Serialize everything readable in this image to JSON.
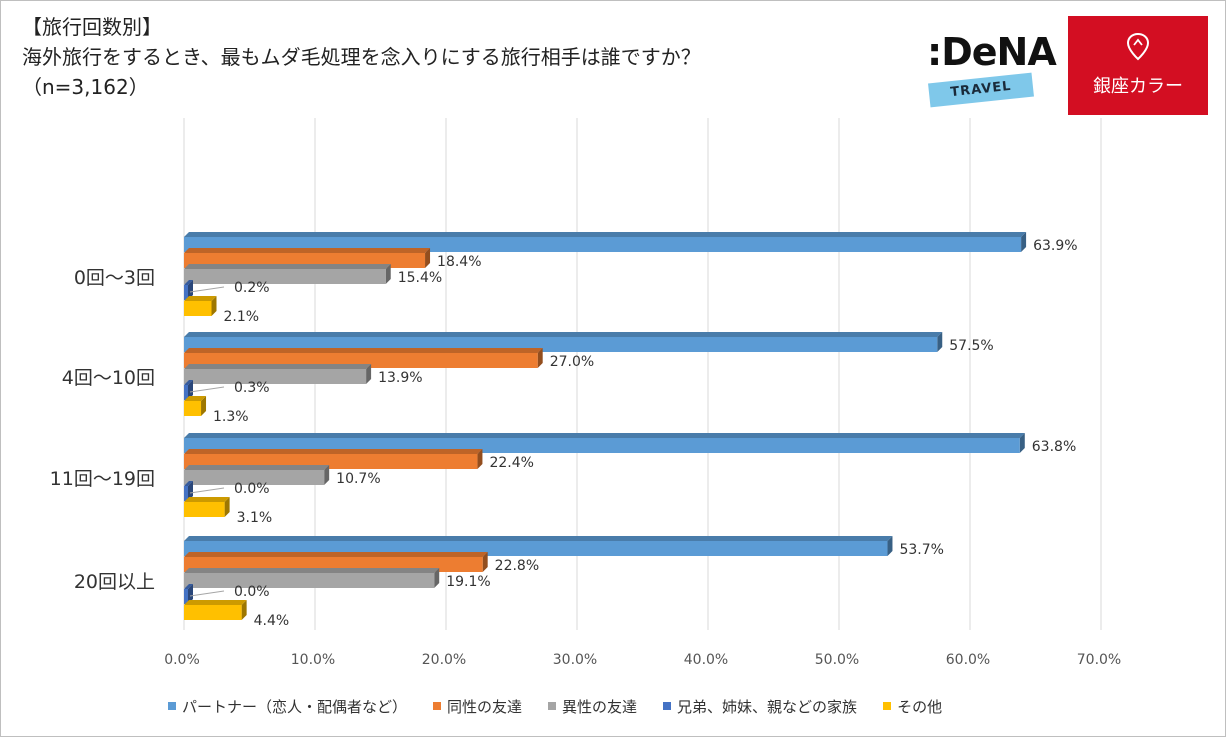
{
  "title_lines": [
    "【旅行回数別】",
    "海外旅行をするとき、最もムダ毛処理を念入りにする旅行相手は誰ですか？",
    "（n=3,162）"
  ],
  "logos": {
    "dena": {
      "word": ":DeNA",
      "sub": "TRAVEL"
    },
    "ginza": {
      "text": "銀座カラー"
    }
  },
  "chart_data": {
    "type": "bar",
    "orientation": "horizontal",
    "categories": [
      "0回〜3回",
      "4回〜10回",
      "11回〜19回",
      "20回以上"
    ],
    "series": [
      {
        "name": "パートナー（恋人・配偶者など）",
        "color": "#5b9bd5",
        "values": [
          63.9,
          57.5,
          63.8,
          53.7
        ]
      },
      {
        "name": "同性の友達",
        "color": "#ed7d31",
        "values": [
          18.4,
          27.0,
          22.4,
          22.8
        ]
      },
      {
        "name": "異性の友達",
        "color": "#a5a5a5",
        "values": [
          15.4,
          13.9,
          10.7,
          19.1
        ]
      },
      {
        "name": "兄弟、姉妹、親などの家族",
        "color": "#4472c4",
        "values": [
          0.2,
          0.3,
          0.0,
          0.0
        ]
      },
      {
        "name": "その他",
        "color": "#ffc000",
        "values": [
          2.1,
          1.3,
          3.1,
          4.4
        ]
      }
    ],
    "xlim": [
      0,
      70
    ],
    "xticks": [
      "0.0%",
      "10.0%",
      "20.0%",
      "30.0%",
      "40.0%",
      "50.0%",
      "60.0%",
      "70.0%"
    ],
    "value_labels": [
      [
        "63.9%",
        "18.4%",
        "15.4%",
        "0.2%",
        "2.1%"
      ],
      [
        "57.5%",
        "27.0%",
        "13.9%",
        "0.3%",
        "1.3%"
      ],
      [
        "63.8%",
        "22.4%",
        "10.7%",
        "0.0%",
        "3.1%"
      ],
      [
        "53.7%",
        "22.8%",
        "19.1%",
        "0.0%",
        "4.4%"
      ]
    ],
    "grid": true,
    "legend_position": "bottom"
  }
}
